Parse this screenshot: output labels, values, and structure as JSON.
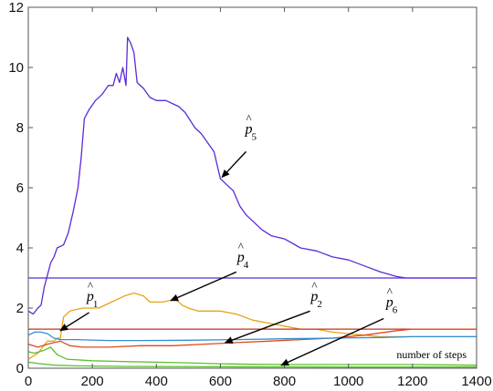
{
  "chart_data": {
    "type": "line",
    "title": "",
    "xlabel": "",
    "ylabel": "",
    "xlim": [
      0,
      1400
    ],
    "ylim": [
      0,
      12
    ],
    "x_ticks": [
      0,
      200,
      400,
      600,
      800,
      1000,
      1200,
      1400
    ],
    "y_ticks": [
      0,
      2,
      4,
      6,
      8,
      10,
      12
    ],
    "grid": false,
    "legend": "none",
    "annotation_text": "number of steps",
    "series": [
      {
        "color": "#5b2bd6",
        "points": [
          [
            0,
            1.9
          ],
          [
            15,
            1.8
          ],
          [
            30,
            2.0
          ],
          [
            40,
            2.1
          ],
          [
            50,
            2.7
          ],
          [
            60,
            3.1
          ],
          [
            70,
            3.5
          ],
          [
            80,
            3.7
          ],
          [
            90,
            4.0
          ],
          [
            110,
            4.1
          ],
          [
            125,
            4.5
          ],
          [
            140,
            5.2
          ],
          [
            155,
            6.0
          ],
          [
            165,
            7.0
          ],
          [
            175,
            8.3
          ],
          [
            190,
            8.6
          ],
          [
            210,
            8.9
          ],
          [
            230,
            9.1
          ],
          [
            250,
            9.4
          ],
          [
            265,
            9.4
          ],
          [
            275,
            9.8
          ],
          [
            285,
            9.5
          ],
          [
            295,
            10.0
          ],
          [
            305,
            9.4
          ],
          [
            310,
            11.0
          ],
          [
            320,
            10.8
          ],
          [
            330,
            10.5
          ],
          [
            340,
            9.5
          ],
          [
            360,
            9.3
          ],
          [
            380,
            9.0
          ],
          [
            400,
            8.9
          ],
          [
            430,
            8.9
          ],
          [
            450,
            8.8
          ],
          [
            470,
            8.7
          ],
          [
            490,
            8.5
          ],
          [
            520,
            8.0
          ],
          [
            540,
            7.8
          ],
          [
            560,
            7.5
          ],
          [
            580,
            7.2
          ],
          [
            600,
            6.3
          ],
          [
            620,
            6.1
          ],
          [
            640,
            5.9
          ],
          [
            660,
            5.4
          ],
          [
            680,
            5.1
          ],
          [
            700,
            4.9
          ],
          [
            730,
            4.6
          ],
          [
            760,
            4.4
          ],
          [
            800,
            4.3
          ],
          [
            850,
            4.0
          ],
          [
            900,
            3.9
          ],
          [
            950,
            3.7
          ],
          [
            1000,
            3.6
          ],
          [
            1050,
            3.4
          ],
          [
            1100,
            3.2
          ],
          [
            1150,
            3.05
          ],
          [
            1180,
            3.0
          ],
          [
            1400,
            3.0
          ]
        ]
      },
      {
        "color": "#5b2bd6",
        "points": [
          [
            0,
            3.0
          ],
          [
            1400,
            3.0
          ]
        ]
      },
      {
        "color": "#e8a317",
        "points": [
          [
            0,
            0.3
          ],
          [
            30,
            0.5
          ],
          [
            60,
            0.9
          ],
          [
            80,
            0.9
          ],
          [
            90,
            1.0
          ],
          [
            100,
            1.0
          ],
          [
            110,
            1.7
          ],
          [
            130,
            1.9
          ],
          [
            170,
            2.0
          ],
          [
            220,
            2.0
          ],
          [
            260,
            2.2
          ],
          [
            300,
            2.4
          ],
          [
            330,
            2.5
          ],
          [
            360,
            2.4
          ],
          [
            380,
            2.2
          ],
          [
            420,
            2.2
          ],
          [
            460,
            2.3
          ],
          [
            480,
            2.1
          ],
          [
            500,
            2.0
          ],
          [
            530,
            1.9
          ],
          [
            560,
            1.9
          ],
          [
            600,
            1.9
          ],
          [
            650,
            1.8
          ],
          [
            700,
            1.6
          ],
          [
            750,
            1.5
          ],
          [
            800,
            1.4
          ],
          [
            850,
            1.3
          ],
          [
            900,
            1.3
          ],
          [
            950,
            1.2
          ],
          [
            1000,
            1.15
          ],
          [
            1050,
            1.1
          ],
          [
            1100,
            1.05
          ],
          [
            1150,
            1.05
          ],
          [
            1400,
            1.05
          ]
        ]
      },
      {
        "color": "#c0351c",
        "points": [
          [
            0,
            1.3
          ],
          [
            1400,
            1.3
          ]
        ]
      },
      {
        "color": "#e04a1c",
        "points": [
          [
            0,
            0.8
          ],
          [
            30,
            0.7
          ],
          [
            60,
            0.8
          ],
          [
            100,
            0.9
          ],
          [
            130,
            0.75
          ],
          [
            170,
            0.7
          ],
          [
            250,
            0.7
          ],
          [
            350,
            0.75
          ],
          [
            450,
            0.75
          ],
          [
            550,
            0.8
          ],
          [
            650,
            0.85
          ],
          [
            750,
            0.9
          ],
          [
            850,
            0.95
          ],
          [
            950,
            1.0
          ],
          [
            1050,
            1.1
          ],
          [
            1150,
            1.25
          ],
          [
            1200,
            1.3
          ],
          [
            1400,
            1.3
          ]
        ]
      },
      {
        "color": "#2f8fd6",
        "points": [
          [
            0,
            1.1
          ],
          [
            20,
            1.2
          ],
          [
            40,
            1.2
          ],
          [
            60,
            1.15
          ],
          [
            80,
            1.0
          ],
          [
            100,
            0.95
          ],
          [
            150,
            0.95
          ],
          [
            250,
            0.92
          ],
          [
            350,
            0.92
          ],
          [
            500,
            0.93
          ],
          [
            650,
            0.95
          ],
          [
            800,
            0.98
          ],
          [
            950,
            1.0
          ],
          [
            1100,
            1.02
          ],
          [
            1200,
            1.05
          ],
          [
            1400,
            1.05
          ]
        ]
      },
      {
        "color": "#5bbf2c",
        "points": [
          [
            0,
            0.55
          ],
          [
            20,
            0.5
          ],
          [
            50,
            0.6
          ],
          [
            70,
            0.7
          ],
          [
            90,
            0.45
          ],
          [
            120,
            0.3
          ],
          [
            200,
            0.25
          ],
          [
            300,
            0.22
          ],
          [
            400,
            0.2
          ],
          [
            500,
            0.18
          ],
          [
            600,
            0.15
          ],
          [
            700,
            0.13
          ],
          [
            800,
            0.12
          ],
          [
            1000,
            0.12
          ],
          [
            1200,
            0.12
          ],
          [
            1400,
            0.1
          ]
        ]
      },
      {
        "color": "#5bbf2c",
        "points": [
          [
            0,
            0.2
          ],
          [
            40,
            0.15
          ],
          [
            80,
            0.1
          ],
          [
            150,
            0.08
          ],
          [
            300,
            0.06
          ],
          [
            600,
            0.05
          ],
          [
            1000,
            0.04
          ],
          [
            1400,
            0.04
          ]
        ]
      }
    ],
    "annotations": [
      {
        "letter": "p",
        "sub": "5",
        "text_at": [
          680,
          7.8
        ],
        "arrow_from": [
          680,
          7.2
        ],
        "arrow_to": [
          605,
          6.35
        ]
      },
      {
        "letter": "p",
        "sub": "4",
        "text_at": [
          655,
          3.55
        ],
        "arrow_from": [
          650,
          3.2
        ],
        "arrow_to": [
          445,
          2.25
        ]
      },
      {
        "letter": "p",
        "sub": "1",
        "text_at": [
          185,
          2.25
        ],
        "arrow_from": [
          190,
          1.85
        ],
        "arrow_to": [
          100,
          1.25
        ]
      },
      {
        "letter": "p",
        "sub": "2",
        "text_at": [
          885,
          2.25
        ],
        "arrow_from": [
          880,
          1.9
        ],
        "arrow_to": [
          615,
          0.85
        ]
      },
      {
        "letter": "p",
        "sub": "6",
        "text_at": [
          1120,
          2.05
        ],
        "arrow_from": [
          1110,
          1.65
        ],
        "arrow_to": [
          790,
          0.1
        ]
      }
    ]
  }
}
